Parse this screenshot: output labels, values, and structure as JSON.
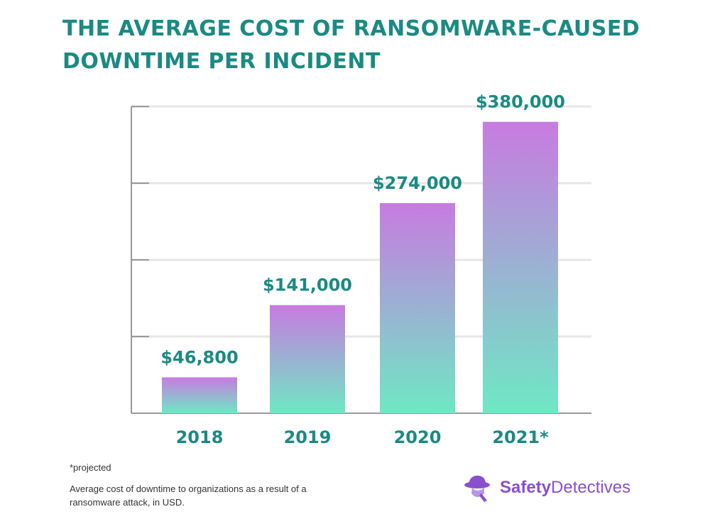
{
  "title_line1": "THE AVERAGE COST OF RANSOMWARE-CAUSED",
  "title_line2": "DOWNTIME PER INCIDENT",
  "chart_data": {
    "type": "bar",
    "categories": [
      "2018",
      "2019",
      "2020",
      "2021*"
    ],
    "values": [
      46800,
      141000,
      274000,
      380000
    ],
    "value_labels": [
      "$46,800",
      "$141,000",
      "$274,000",
      "$380,000"
    ],
    "ylim": [
      0,
      400000
    ],
    "grid": true,
    "gradient_colors": {
      "top": "#c77be0",
      "bottom": "#6ee8c4"
    },
    "label_color": "#1a8a82",
    "axis_color": "#999999"
  },
  "footnote_projected": "*projected",
  "footnote_description": "Average cost of downtime to organizations as a result of a ransomware attack, in USD.",
  "logo": {
    "part1": "Safety",
    "part2": "Detectives",
    "icon": "detective-hat-icon"
  }
}
